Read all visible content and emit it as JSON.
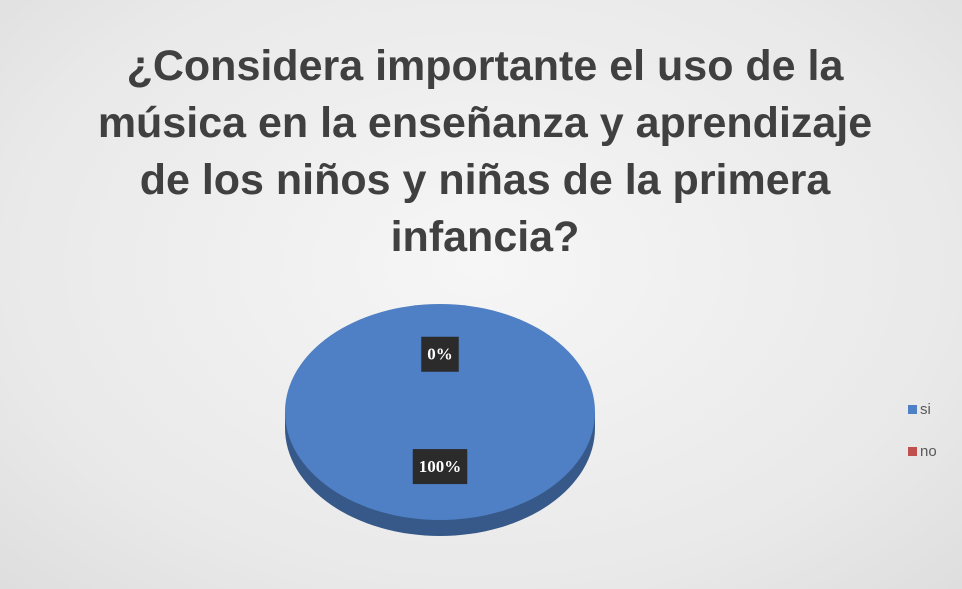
{
  "chart_data": {
    "type": "pie",
    "title": "¿Considera importante el uso de la música en la enseñanza y aprendizaje de los niños y niñas de la primera infancia?",
    "categories": [
      "si",
      "no"
    ],
    "values": [
      100,
      0
    ],
    "value_labels": [
      "100%",
      "0%"
    ],
    "colors": [
      "#4f7fc4",
      "#c0504d"
    ],
    "legend": "right"
  }
}
